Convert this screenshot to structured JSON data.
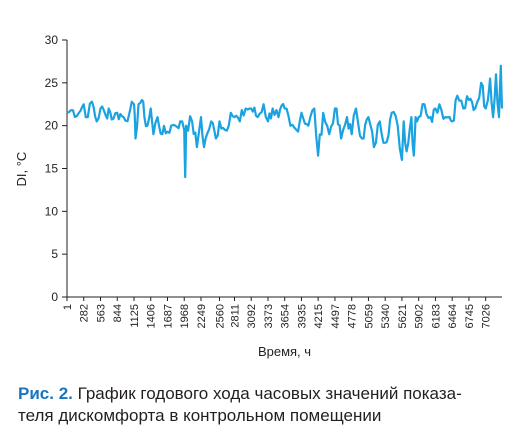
{
  "chart_data": {
    "type": "line",
    "title": "",
    "xlabel": "Время, ч",
    "ylabel": "DI, °C",
    "ylim": [
      0,
      30
    ],
    "xlim": [
      1,
      7300
    ],
    "yticks": [
      0,
      5,
      10,
      15,
      20,
      25,
      30
    ],
    "xticks": [
      1,
      282,
      563,
      844,
      1125,
      1406,
      1687,
      1968,
      2249,
      2560,
      2811,
      3092,
      3373,
      3654,
      3935,
      4215,
      4497,
      4778,
      5059,
      5340,
      5621,
      5902,
      6183,
      6464,
      6745,
      7026
    ],
    "grid": false,
    "series": [
      {
        "color": "#1aa3e0",
        "x": [
          1,
          100,
          200,
          282,
          350,
          420,
          500,
          563,
          650,
          700,
          780,
          844,
          950,
          1050,
          1125,
          1150,
          1200,
          1260,
          1300,
          1350,
          1406,
          1450,
          1520,
          1600,
          1687,
          1750,
          1820,
          1900,
          1968,
          1985,
          2000,
          2100,
          2180,
          2249,
          2300,
          2350,
          2420,
          2500,
          2560,
          2650,
          2750,
          2811,
          2900,
          3000,
          3092,
          3200,
          3300,
          3373,
          3450,
          3550,
          3654,
          3750,
          3850,
          3935,
          4050,
          4150,
          4215,
          4300,
          4400,
          4497,
          4600,
          4700,
          4778,
          4850,
          4950,
          5059,
          5150,
          5250,
          5340,
          5450,
          5550,
          5621,
          5650,
          5700,
          5780,
          5820,
          5850,
          5902,
          6000,
          6100,
          6183,
          6250,
          6350,
          6420,
          6464,
          6550,
          6650,
          6745,
          6850,
          6950,
          7026,
          7100,
          7150,
          7200,
          7250,
          7280,
          7300
        ],
        "values": [
          21.5,
          21.8,
          21.5,
          22.5,
          21,
          22.8,
          20.5,
          22,
          21.2,
          22,
          20.8,
          21.5,
          21,
          21.5,
          22.5,
          18.5,
          22.5,
          23,
          21,
          20,
          22,
          19,
          21,
          19,
          19.3,
          20,
          20,
          20.5,
          19.5,
          14,
          20,
          20.5,
          17.5,
          21,
          17.5,
          19,
          20.5,
          18.5,
          20.5,
          19.5,
          21.5,
          21,
          20.5,
          22,
          22,
          21,
          22.5,
          20.5,
          22,
          21,
          22,
          20,
          19.5,
          21.5,
          20,
          22,
          16.5,
          21.5,
          19,
          22,
          18.5,
          21,
          19,
          22,
          18.5,
          21,
          17.5,
          20.5,
          18,
          21.5,
          20,
          16,
          20.5,
          17,
          21,
          16.5,
          21,
          21,
          22.5,
          21,
          22,
          22.5,
          21,
          21,
          20.5,
          23.5,
          22,
          23,
          22,
          25,
          22,
          25.5,
          21,
          26,
          21,
          27,
          22
        ]
      }
    ]
  },
  "caption": {
    "label": "Рис. 2.",
    "line1": " График годового хода часовых значений показа-",
    "line2": "теля дискомфорта в контрольном помещении"
  }
}
